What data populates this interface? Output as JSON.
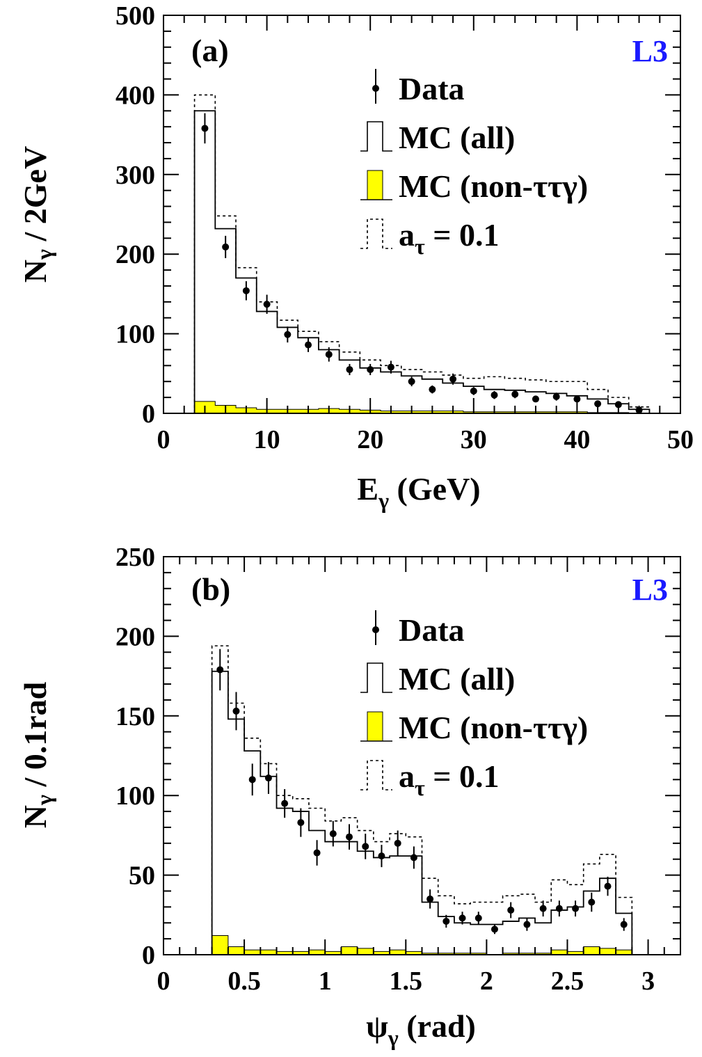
{
  "colors": {
    "background": "#ffffff",
    "ink": "#000000",
    "non_tautau_fill": "#ffff00",
    "experiment_label": "#1a1aff"
  },
  "chart_data": [
    {
      "type": "histogram",
      "panel_label": "(a)",
      "experiment_label": "L3",
      "xlabel": {
        "main": "E",
        "sub": "γ",
        "rest": "(GeV)"
      },
      "ylabel": {
        "main": "N",
        "sub": "γ",
        "rest": "/ 2GeV"
      },
      "xlim": [
        0,
        50
      ],
      "ylim": [
        0,
        500
      ],
      "x_ticks": [
        0,
        10,
        20,
        30,
        40,
        50
      ],
      "x_tick_labels": [
        "0",
        "10",
        "20",
        "30",
        "40",
        "50"
      ],
      "y_ticks": [
        0,
        100,
        200,
        300,
        400,
        500
      ],
      "y_tick_labels": [
        "0",
        "100",
        "200",
        "300",
        "400",
        "500"
      ],
      "legend": [
        {
          "key": "data",
          "label": "Data"
        },
        {
          "key": "mc_all",
          "label": "MC (all)"
        },
        {
          "key": "mc_bkg",
          "label": "MC (non-ττγ)"
        },
        {
          "key": "a_tau",
          "label_main": "a",
          "label_sub": "τ",
          "label_rest": "= 0.1"
        }
      ],
      "bin_edges": [
        3,
        5,
        7,
        9,
        11,
        13,
        15,
        17,
        19,
        21,
        23,
        25,
        27,
        29,
        31,
        33,
        35,
        37,
        39,
        41,
        43,
        45,
        47
      ],
      "series": [
        {
          "key": "mc_all",
          "values": [
            380,
            232,
            170,
            128,
            108,
            95,
            80,
            67,
            57,
            52,
            47,
            43,
            38,
            34,
            30,
            29,
            27,
            25,
            22,
            18,
            12,
            5
          ]
        },
        {
          "key": "a_tau",
          "values": [
            400,
            248,
            183,
            140,
            117,
            103,
            90,
            77,
            67,
            60,
            55,
            52,
            48,
            44,
            46,
            44,
            42,
            40,
            40,
            30,
            20,
            8
          ]
        },
        {
          "key": "mc_bkg",
          "values": [
            15,
            10,
            7,
            5,
            5,
            5,
            6,
            5,
            4,
            3,
            3,
            3,
            3,
            2,
            2,
            2,
            2,
            2,
            2,
            1,
            1,
            0
          ]
        }
      ],
      "data_points": {
        "x": [
          4,
          6,
          8,
          10,
          12,
          14,
          16,
          18,
          20,
          22,
          24,
          26,
          28,
          30,
          32,
          34,
          36,
          38,
          40,
          42,
          44,
          46
        ],
        "y": [
          358,
          209,
          154,
          137,
          99,
          86,
          74,
          55,
          55,
          58,
          40,
          30,
          43,
          28,
          23,
          24,
          18,
          21,
          18,
          12,
          11,
          4
        ],
        "err": [
          19,
          14,
          12,
          12,
          10,
          9,
          9,
          7,
          7,
          8,
          6,
          5,
          7,
          5,
          5,
          5,
          4,
          5,
          4,
          3,
          3,
          2
        ]
      }
    },
    {
      "type": "histogram",
      "panel_label": "(b)",
      "experiment_label": "L3",
      "xlabel": {
        "main": "ψ",
        "sub": "γ",
        "rest": "(rad)"
      },
      "ylabel": {
        "main": "N",
        "sub": "γ",
        "rest": "/ 0.1rad"
      },
      "xlim": [
        0,
        3.2
      ],
      "ylim": [
        0,
        250
      ],
      "x_ticks": [
        0,
        0.5,
        1,
        1.5,
        2,
        2.5,
        3
      ],
      "x_tick_labels": [
        "0",
        "0.5",
        "1",
        "1.5",
        "2",
        "2.5",
        "3"
      ],
      "y_ticks": [
        0,
        50,
        100,
        150,
        200,
        250
      ],
      "y_tick_labels": [
        "0",
        "50",
        "100",
        "150",
        "200",
        "250"
      ],
      "legend": [
        {
          "key": "data",
          "label": "Data"
        },
        {
          "key": "mc_all",
          "label": "MC (all)"
        },
        {
          "key": "mc_bkg",
          "label": "MC (non-ττγ)"
        },
        {
          "key": "a_tau",
          "label_main": "a",
          "label_sub": "τ",
          "label_rest": "= 0.1"
        }
      ],
      "bin_edges": [
        0.3,
        0.4,
        0.5,
        0.6,
        0.7,
        0.8,
        0.9,
        1.0,
        1.1,
        1.2,
        1.3,
        1.4,
        1.5,
        1.6,
        1.7,
        1.8,
        1.9,
        2.0,
        2.1,
        2.2,
        2.3,
        2.4,
        2.5,
        2.6,
        2.7,
        2.8,
        2.9
      ],
      "series": [
        {
          "key": "mc_all",
          "values": [
            178,
            148,
            128,
            112,
            92,
            90,
            78,
            71,
            71,
            65,
            61,
            62,
            62,
            33,
            24,
            20,
            19,
            19,
            21,
            23,
            20,
            28,
            30,
            40,
            48,
            26
          ]
        },
        {
          "key": "a_tau",
          "values": [
            194,
            158,
            136,
            120,
            100,
            98,
            92,
            84,
            86,
            78,
            71,
            76,
            74,
            48,
            37,
            32,
            33,
            33,
            37,
            38,
            33,
            47,
            44,
            57,
            63,
            36
          ]
        },
        {
          "key": "mc_bkg",
          "values": [
            12,
            5,
            3,
            3,
            2,
            2,
            3,
            2,
            5,
            4,
            2,
            3,
            2,
            1,
            1,
            1,
            1,
            0,
            1,
            1,
            1,
            3,
            2,
            5,
            4,
            3
          ]
        }
      ],
      "data_points": {
        "x": [
          0.35,
          0.45,
          0.55,
          0.65,
          0.75,
          0.85,
          0.95,
          1.05,
          1.15,
          1.25,
          1.35,
          1.45,
          1.55,
          1.65,
          1.75,
          1.85,
          1.95,
          2.05,
          2.15,
          2.25,
          2.35,
          2.45,
          2.55,
          2.65,
          2.75,
          2.85
        ],
        "y": [
          179,
          153,
          110,
          111,
          95,
          83,
          64,
          76,
          74,
          68,
          62,
          70,
          61,
          35,
          21,
          23,
          23,
          16,
          28,
          19,
          29,
          29,
          29,
          33,
          43,
          19
        ],
        "err": [
          13,
          12,
          10,
          10,
          9,
          9,
          8,
          8,
          8,
          8,
          7,
          8,
          7,
          6,
          4,
          4,
          4,
          3,
          5,
          4,
          5,
          5,
          5,
          6,
          6,
          4
        ]
      }
    }
  ]
}
